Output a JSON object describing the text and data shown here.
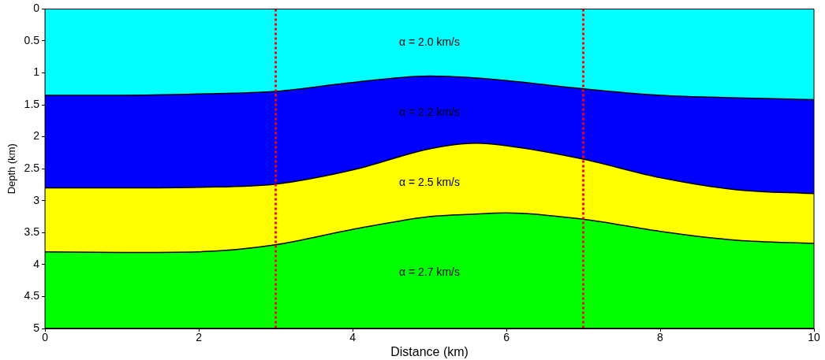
{
  "chart_data": {
    "type": "area",
    "stacked": true,
    "xlabel": "Distance (km)",
    "ylabel": "Depth (km)",
    "x": [
      0,
      1,
      2,
      3,
      4,
      5,
      5.6,
      6,
      7,
      8,
      9,
      10
    ],
    "series": [
      {
        "color": "#00ffff",
        "values": [
          1.35,
          1.35,
          1.33,
          1.29,
          1.15,
          1.05,
          1.08,
          1.12,
          1.25,
          1.35,
          1.39,
          1.42
        ]
      },
      {
        "color": "#0000ff",
        "values": [
          1.45,
          1.45,
          1.46,
          1.45,
          1.37,
          1.14,
          1.02,
          1.02,
          1.1,
          1.29,
          1.44,
          1.47
        ]
      },
      {
        "color": "#ffff00",
        "values": [
          1.0,
          1.01,
          1.01,
          0.95,
          0.93,
          1.06,
          1.11,
          1.05,
          0.94,
          0.84,
          0.79,
          0.78
        ]
      },
      {
        "color": "#00ff00",
        "values": [
          1.2,
          1.19,
          1.2,
          1.31,
          1.55,
          1.75,
          1.79,
          1.81,
          1.71,
          1.52,
          1.38,
          1.33
        ]
      }
    ],
    "xlim": [
      0,
      10
    ],
    "xticks": [
      0,
      2,
      4,
      6,
      8,
      10
    ],
    "ylim": [
      5,
      0
    ],
    "yticks": [
      0,
      0.5,
      1,
      1.5,
      2,
      2.5,
      3,
      3.5,
      4,
      4.5,
      5
    ],
    "ref_lines": [
      {
        "axis": "x",
        "value": 3,
        "color": "#ff0000",
        "line_style": "dotted"
      },
      {
        "axis": "x",
        "value": 7,
        "color": "#ff0000",
        "line_style": "dotted"
      }
    ],
    "annotations": [
      "α = 2.0 km/s",
      "α = 2.2 km/s",
      "α = 2.5 km/s",
      "α = 2.7 km/s"
    ],
    "grid": false,
    "legend": false,
    "marker": "none",
    "line_style": "solid"
  }
}
